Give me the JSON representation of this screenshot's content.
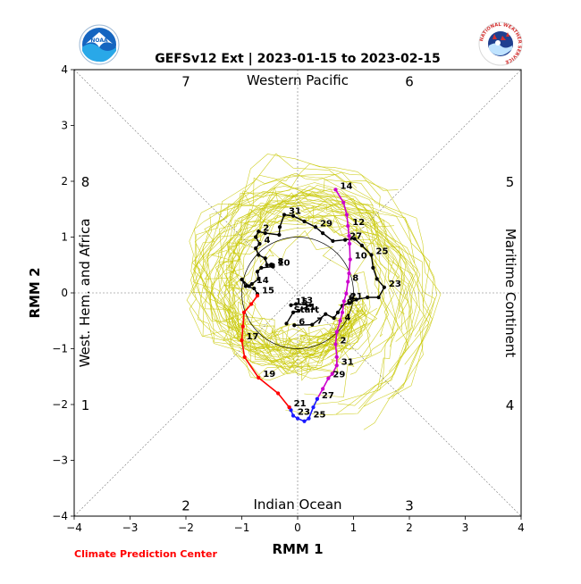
{
  "logos": {
    "left": {
      "text": "NOAA",
      "bg": "#0a6fbf",
      "ring": "#1e88e5"
    },
    "right": {
      "text": "NATIONAL WEATHER SERVICE",
      "ring_text_color": "#d32f2f"
    }
  },
  "footer": "Climate Prediction Center",
  "chart_data": {
    "type": "line",
    "title": "GEFSv12 Ext | 2023-01-15 to 2023-02-15",
    "xlabel": "RMM 1",
    "ylabel": "RMM 2",
    "xlim": [
      -4,
      4
    ],
    "ylim": [
      -4,
      4
    ],
    "xticks": [
      "−4",
      "−3",
      "−2",
      "−1",
      "0",
      "1",
      "2",
      "3",
      "4"
    ],
    "yticks": [
      "−4",
      "−3",
      "−2",
      "−1",
      "0",
      "1",
      "2",
      "3",
      "4"
    ],
    "region_labels": {
      "top": "Western Pacific",
      "bottom": "Indian Ocean",
      "left": "West. Hem. and Africa",
      "right": "Maritime Continent"
    },
    "phase_labels": [
      {
        "text": "7",
        "x": -2.0,
        "y": 3.8
      },
      {
        "text": "6",
        "x": 2.0,
        "y": 3.8
      },
      {
        "text": "8",
        "x": -3.8,
        "y": 2.0
      },
      {
        "text": "5",
        "x": 3.8,
        "y": 2.0
      },
      {
        "text": "1",
        "x": -3.8,
        "y": -2.0
      },
      {
        "text": "4",
        "x": 3.8,
        "y": -2.0
      },
      {
        "text": "2",
        "x": -2.0,
        "y": -3.8
      },
      {
        "text": "3",
        "x": 2.0,
        "y": -3.8
      }
    ],
    "unit_circle_radius": 1,
    "colors": {
      "observed": "#000000",
      "mean_week1": "#cc00cc",
      "mean_week2": "#1a1aff",
      "mean_week3": "#ff0000",
      "ensemble": "#c8c800"
    },
    "observed_series": {
      "start_label": "Start",
      "points": [
        {
          "x": -0.06,
          "y": -0.58,
          "label": "6"
        },
        {
          "x": 0.26,
          "y": -0.57,
          "label": "7"
        },
        {
          "x": 0.5,
          "y": -0.38
        },
        {
          "x": 0.65,
          "y": -0.45
        },
        {
          "x": 0.72,
          "y": -0.35
        },
        {
          "x": 0.8,
          "y": -0.23,
          "label": "9"
        },
        {
          "x": 0.92,
          "y": -0.18
        },
        {
          "x": 1.05,
          "y": -0.12
        },
        {
          "x": 1.25,
          "y": -0.08
        },
        {
          "x": 1.45,
          "y": -0.08
        },
        {
          "x": 1.55,
          "y": 0.1,
          "label": "23"
        },
        {
          "x": 1.42,
          "y": 0.25
        },
        {
          "x": 1.35,
          "y": 0.45
        },
        {
          "x": 1.32,
          "y": 0.68,
          "label": "25"
        },
        {
          "x": 1.15,
          "y": 0.85
        },
        {
          "x": 1.02,
          "y": 0.97
        },
        {
          "x": 0.85,
          "y": 0.95,
          "label": "27"
        },
        {
          "x": 0.63,
          "y": 0.93
        },
        {
          "x": 0.45,
          "y": 1.07
        },
        {
          "x": 0.32,
          "y": 1.18,
          "label": "29"
        },
        {
          "x": 0.12,
          "y": 1.28
        },
        {
          "x": -0.08,
          "y": 1.38
        },
        {
          "x": -0.24,
          "y": 1.4,
          "label": "31"
        },
        {
          "x": -0.32,
          "y": 1.18
        },
        {
          "x": -0.33,
          "y": 1.04
        },
        {
          "x": -0.58,
          "y": 1.07
        },
        {
          "x": -0.7,
          "y": 1.1,
          "label": "2"
        },
        {
          "x": -0.75,
          "y": 1.0
        },
        {
          "x": -0.68,
          "y": 0.88,
          "label": "4"
        },
        {
          "x": -0.75,
          "y": 0.8
        },
        {
          "x": -0.7,
          "y": 0.68
        },
        {
          "x": -0.58,
          "y": 0.62
        },
        {
          "x": -0.55,
          "y": 0.5
        },
        {
          "x": -0.44,
          "y": 0.5,
          "label": "8"
        },
        {
          "x": -0.48,
          "y": 0.5
        },
        {
          "x": -0.47,
          "y": 0.51
        },
        {
          "x": -0.46,
          "y": 0.48
        },
        {
          "x": -0.44,
          "y": 0.47,
          "label": "10"
        },
        {
          "x": -0.65,
          "y": 0.45
        },
        {
          "x": -0.72,
          "y": 0.38
        },
        {
          "x": -0.7,
          "y": 0.25
        },
        {
          "x": -0.82,
          "y": 0.16,
          "label": "14"
        },
        {
          "x": -0.87,
          "y": 0.12
        },
        {
          "x": -1.0,
          "y": 0.24
        },
        {
          "x": -0.93,
          "y": 0.12
        },
        {
          "x": -0.78,
          "y": 0.08
        },
        {
          "x": -0.72,
          "y": -0.02,
          "label": "15"
        }
      ],
      "recent_points": [
        {
          "x": -0.12,
          "y": -0.22,
          "label": "15"
        },
        {
          "x": -0.03,
          "y": -0.2,
          "label": "13"
        },
        {
          "x": 0.23,
          "y": -0.22
        },
        {
          "x": 0.02,
          "y": -0.32,
          "label": "11"
        },
        {
          "x": -0.08,
          "y": -0.35
        },
        {
          "x": -0.2,
          "y": -0.55
        }
      ]
    },
    "mean_series": [
      {
        "color_key": "mean_week1",
        "points": [
          {
            "x": 0.68,
            "y": 1.85,
            "label": "14"
          },
          {
            "x": 0.82,
            "y": 1.62
          },
          {
            "x": 0.88,
            "y": 1.4
          },
          {
            "x": 0.9,
            "y": 1.2,
            "label": "12"
          },
          {
            "x": 0.92,
            "y": 1.02
          },
          {
            "x": 0.93,
            "y": 0.88
          },
          {
            "x": 0.94,
            "y": 0.6,
            "label": "10"
          },
          {
            "x": 0.92,
            "y": 0.35
          },
          {
            "x": 0.9,
            "y": 0.2,
            "label": "8"
          },
          {
            "x": 0.87,
            "y": -0.01
          },
          {
            "x": 0.83,
            "y": -0.15,
            "label": "6"
          },
          {
            "x": 0.8,
            "y": -0.35
          },
          {
            "x": 0.76,
            "y": -0.5,
            "label": "4"
          },
          {
            "x": 0.7,
            "y": -0.7
          },
          {
            "x": 0.68,
            "y": -0.92,
            "label": "2"
          },
          {
            "x": 0.7,
            "y": -1.15
          },
          {
            "x": 0.7,
            "y": -1.3,
            "label": "31"
          },
          {
            "x": 0.62,
            "y": -1.45
          },
          {
            "x": 0.55,
            "y": -1.53,
            "label": "29"
          },
          {
            "x": 0.45,
            "y": -1.72
          },
          {
            "x": 0.35,
            "y": -1.9,
            "label": "27"
          }
        ]
      },
      {
        "color_key": "mean_week2",
        "points": [
          {
            "x": 0.35,
            "y": -1.9
          },
          {
            "x": 0.28,
            "y": -2.05
          },
          {
            "x": 0.2,
            "y": -2.25,
            "label": "25"
          },
          {
            "x": 0.12,
            "y": -2.3
          },
          {
            "x": 0.0,
            "y": -2.25
          },
          {
            "x": -0.08,
            "y": -2.2,
            "label": "23"
          },
          {
            "x": -0.12,
            "y": -2.1
          },
          {
            "x": -0.15,
            "y": -2.05,
            "label": "21"
          }
        ]
      },
      {
        "color_key": "mean_week3",
        "points": [
          {
            "x": -0.15,
            "y": -2.05
          },
          {
            "x": -0.35,
            "y": -1.8
          },
          {
            "x": -0.7,
            "y": -1.52,
            "label": "19"
          },
          {
            "x": -0.95,
            "y": -1.15
          },
          {
            "x": -1.0,
            "y": -0.85,
            "label": "17"
          },
          {
            "x": -0.98,
            "y": -0.6
          },
          {
            "x": -0.96,
            "y": -0.35
          },
          {
            "x": -0.83,
            "y": -0.2
          },
          {
            "x": -0.72,
            "y": -0.05
          }
        ]
      }
    ],
    "observed_extra_labels": [
      {
        "x": 0.94,
        "y": -0.05,
        "label": "21"
      }
    ],
    "ensemble_member_count": 40,
    "grid": false,
    "legend": "none"
  }
}
